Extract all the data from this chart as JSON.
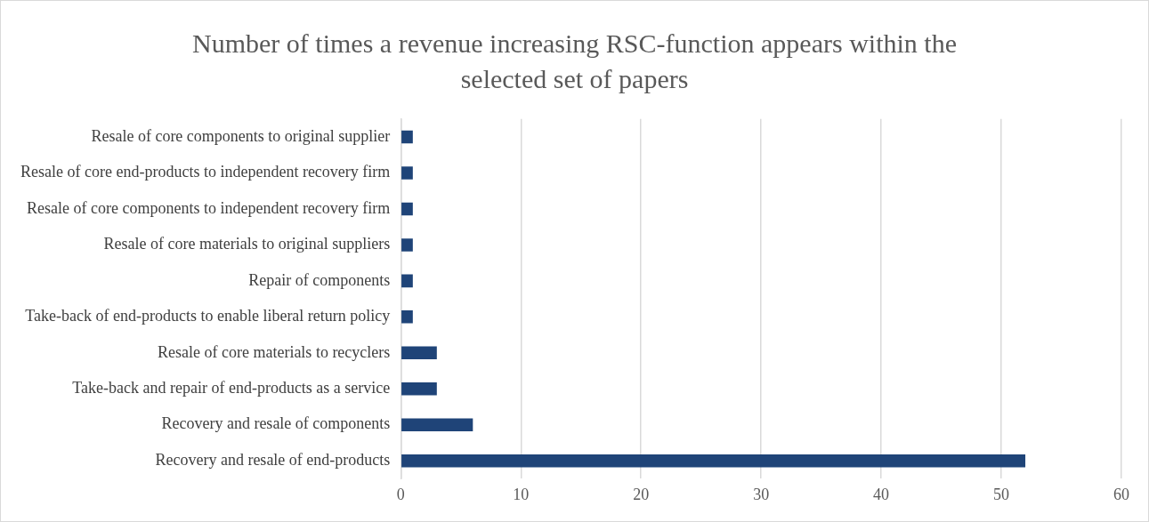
{
  "chart_data": {
    "type": "bar",
    "orientation": "horizontal",
    "title": "Number of times a revenue increasing RSC-function appears within the selected set of papers",
    "categories": [
      "Resale of core components to original supplier",
      "Resale of core end-products to independent recovery firm",
      "Resale of core components to independent recovery firm",
      "Resale of core materials to original suppliers",
      "Repair of components",
      "Take-back of end-products to enable liberal return policy",
      "Resale of core materials to recyclers",
      "Take-back and repair of end-products as a service",
      "Recovery and resale of components",
      "Recovery and resale of end-products"
    ],
    "values": [
      1,
      1,
      1,
      1,
      1,
      1,
      3,
      3,
      6,
      52
    ],
    "color": "#1f4478",
    "xlim": [
      0,
      60
    ],
    "xticks": [
      0,
      10,
      20,
      30,
      40,
      50,
      60
    ],
    "grid": "x",
    "legend": false
  }
}
